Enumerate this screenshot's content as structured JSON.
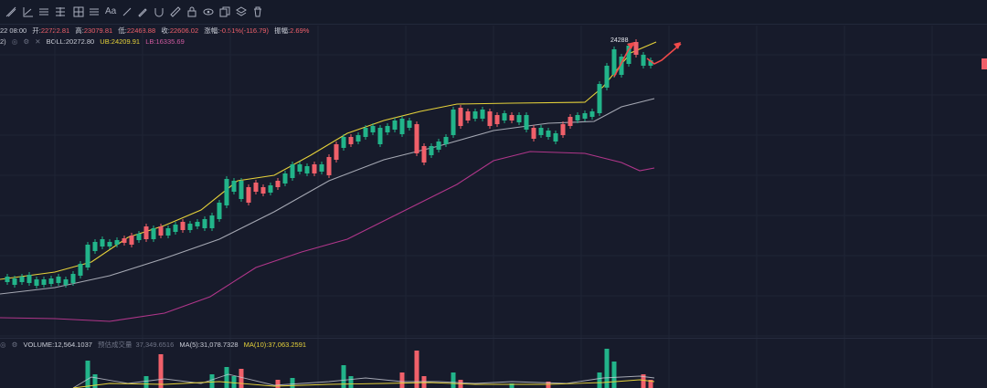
{
  "toolbar": {
    "icons": [
      "lines-icon",
      "trend-icon",
      "menu-icon",
      "pitchfork-icon",
      "grid-icon",
      "menu-icon",
      "text-icon",
      "brush-icon",
      "pencil-icon",
      "magnet-icon",
      "ruler-icon",
      "lock-icon",
      "eye-icon",
      "copy-icon",
      "layers-icon",
      "trash-icon"
    ],
    "text_tool": "Aa"
  },
  "ohlc": {
    "date": "22 08:00",
    "open_label": "开:",
    "open": "22722.81",
    "high_label": "高:",
    "high": "23079.81",
    "low_label": "低:",
    "low": "22468.88",
    "close_label": "收:",
    "close": "22606.02",
    "change_label": "涨幅:",
    "change": "-0.51%(-116.79)",
    "amp_label": "振幅:",
    "amp": "2.69%"
  },
  "boll": {
    "prefix": "2)",
    "label": "BOLL:",
    "mid": "20272.80",
    "ub_label": "UB:",
    "ub": "24209.91",
    "lb_label": "LB:",
    "lb": "16335.69"
  },
  "volume": {
    "label": "VOLUME:",
    "value": "12,564.1037",
    "pred_label": "预估成交量",
    "pred": "37,349.6516",
    "ma5_label": "MA(5):",
    "ma5": "31,078.7328",
    "ma10_label": "MA(10):",
    "ma10": "37,063.2591"
  },
  "peak_label": "24288",
  "colors": {
    "up": "#22b48a",
    "down": "#f0606a",
    "mid": "#c9ccd6",
    "ub": "#e6d23a",
    "lb": "#b0368a",
    "background": "#171b2b"
  }
}
